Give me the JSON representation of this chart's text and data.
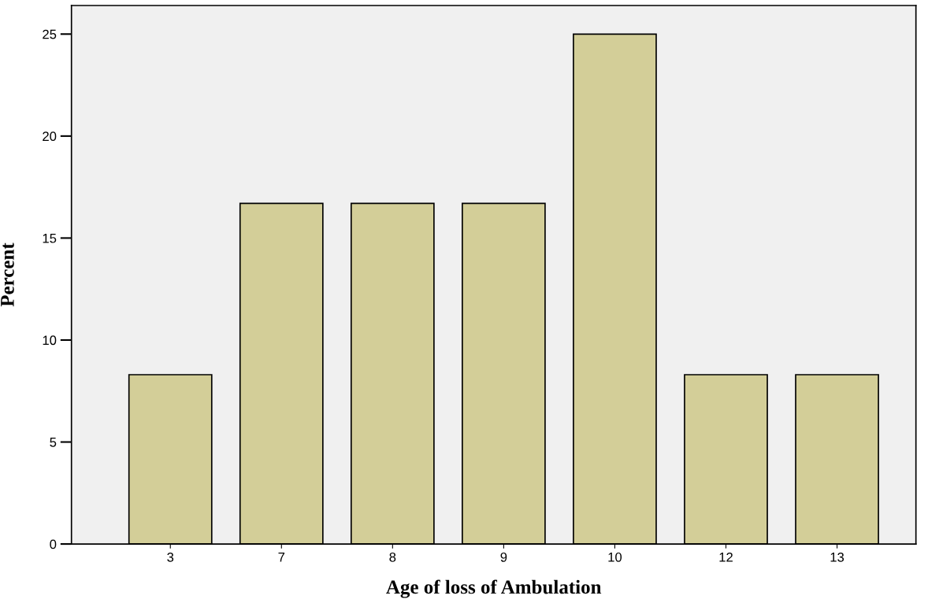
{
  "chart_data": {
    "type": "bar",
    "xlabel": "Age of loss of Ambulation",
    "ylabel": "Percent",
    "categories": [
      "3",
      "7",
      "8",
      "9",
      "10",
      "12",
      "13"
    ],
    "values": [
      8.3,
      16.7,
      16.7,
      16.7,
      25,
      8.3,
      8.3
    ],
    "color": "#d3ce98",
    "ylim": [
      0,
      26.4
    ],
    "yticks": [
      0,
      5,
      10,
      15,
      20,
      25
    ],
    "grid": false
  }
}
